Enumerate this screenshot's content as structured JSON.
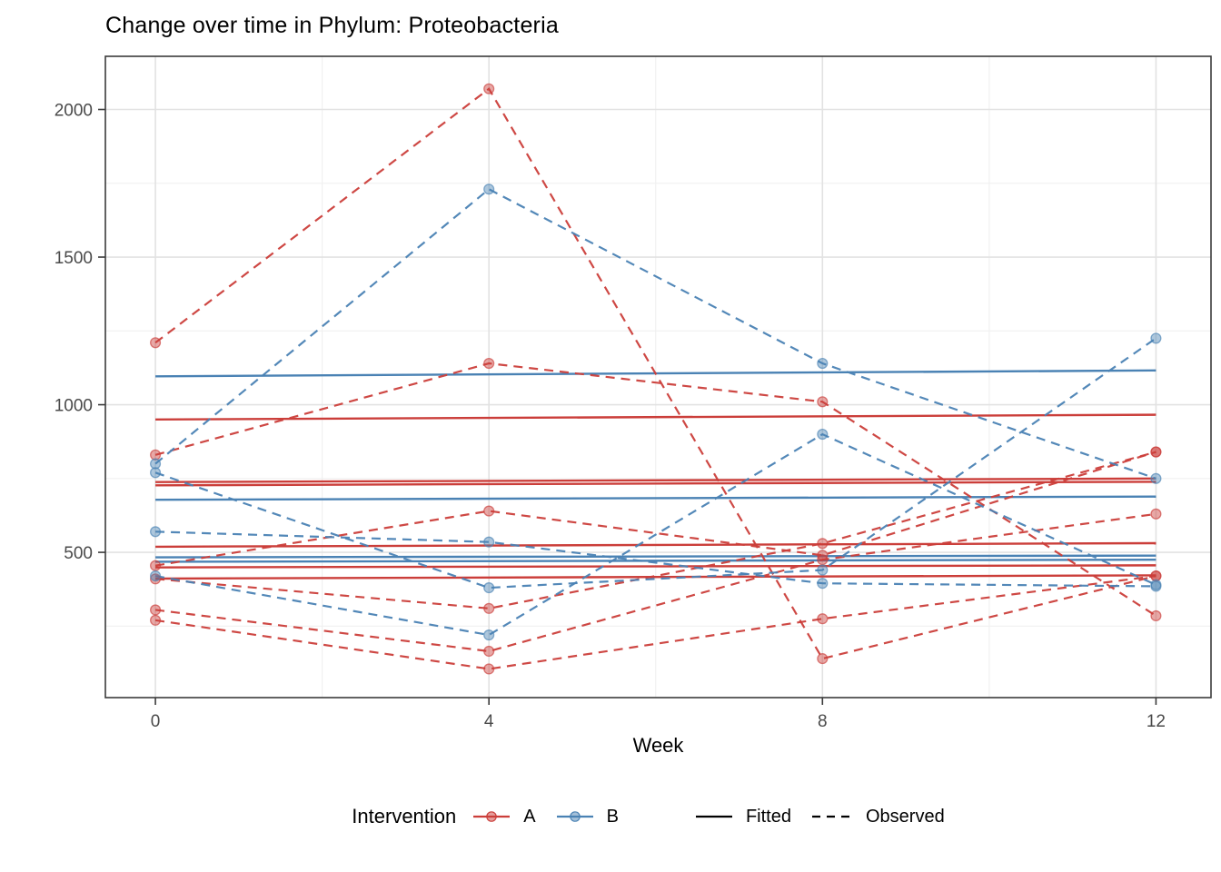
{
  "title": "Change over time in Phylum: Proteobacteria",
  "x_axis": {
    "label": "Week",
    "ticks": [
      0,
      4,
      8,
      12
    ],
    "minor": [
      2,
      6,
      10
    ],
    "domain": [
      -0.6,
      12.66
    ]
  },
  "y_axis": {
    "ticks": [
      500,
      1000,
      1500,
      2000
    ],
    "minor": [
      250,
      750,
      1250,
      1750
    ],
    "domain": [
      8,
      2180
    ]
  },
  "legend": {
    "title": "Intervention",
    "groups": [
      {
        "label": "A",
        "color": "#cb3e3a"
      },
      {
        "label": "B",
        "color": "#4a82b4"
      }
    ],
    "linetypes": [
      {
        "label": "Fitted",
        "style": "solid"
      },
      {
        "label": "Observed",
        "style": "dashed"
      }
    ]
  },
  "colors": {
    "group_a": "#cb3e3a",
    "group_b": "#4a82b4",
    "grid_major": "#e2e2e2",
    "grid_minor": "#f0f0f0",
    "panel_border": "#3b3b3b",
    "tick_mark": "#3b3b3b",
    "tick_label": "#4a4a4a",
    "key_line": "#000000"
  },
  "chart_data": {
    "type": "line",
    "title": "Change over time in Phylum: Proteobacteria",
    "xlabel": "Week",
    "ylabel": "",
    "x": [
      0,
      4,
      8,
      12
    ],
    "xlim": [
      -0.6,
      12.66
    ],
    "ylim": [
      8,
      2180
    ],
    "grid": "on",
    "legend_position": "bottom",
    "observed_series": [
      {
        "group": "A",
        "values": [
          1210,
          2070,
          140,
          420
        ]
      },
      {
        "group": "A",
        "values": [
          830,
          1140,
          1010,
          285
        ]
      },
      {
        "group": "A",
        "values": [
          455,
          640,
          490,
          840
        ]
      },
      {
        "group": "A",
        "values": [
          410,
          310,
          530,
          840
        ]
      },
      {
        "group": "A",
        "values": [
          305,
          165,
          475,
          630
        ]
      },
      {
        "group": "A",
        "values": [
          270,
          105,
          275,
          420
        ]
      },
      {
        "group": "B",
        "values": [
          800,
          1730,
          1140,
          750
        ]
      },
      {
        "group": "B",
        "values": [
          770,
          380,
          440,
          1225
        ]
      },
      {
        "group": "B",
        "values": [
          570,
          535,
          395,
          385
        ]
      },
      {
        "group": "B",
        "values": [
          420,
          220,
          900,
          390
        ]
      }
    ],
    "fitted_series": [
      {
        "group": "A",
        "start": 950,
        "end": 966
      },
      {
        "group": "A",
        "start": 738,
        "end": 750
      },
      {
        "group": "A",
        "start": 727,
        "end": 739
      },
      {
        "group": "A",
        "start": 519,
        "end": 531
      },
      {
        "group": "A",
        "start": 449,
        "end": 456
      },
      {
        "group": "A",
        "start": 411,
        "end": 422
      },
      {
        "group": "B",
        "start": 1096,
        "end": 1116
      },
      {
        "group": "B",
        "start": 678,
        "end": 689
      },
      {
        "group": "B",
        "start": 483,
        "end": 489
      },
      {
        "group": "B",
        "start": 468,
        "end": 475
      }
    ]
  }
}
